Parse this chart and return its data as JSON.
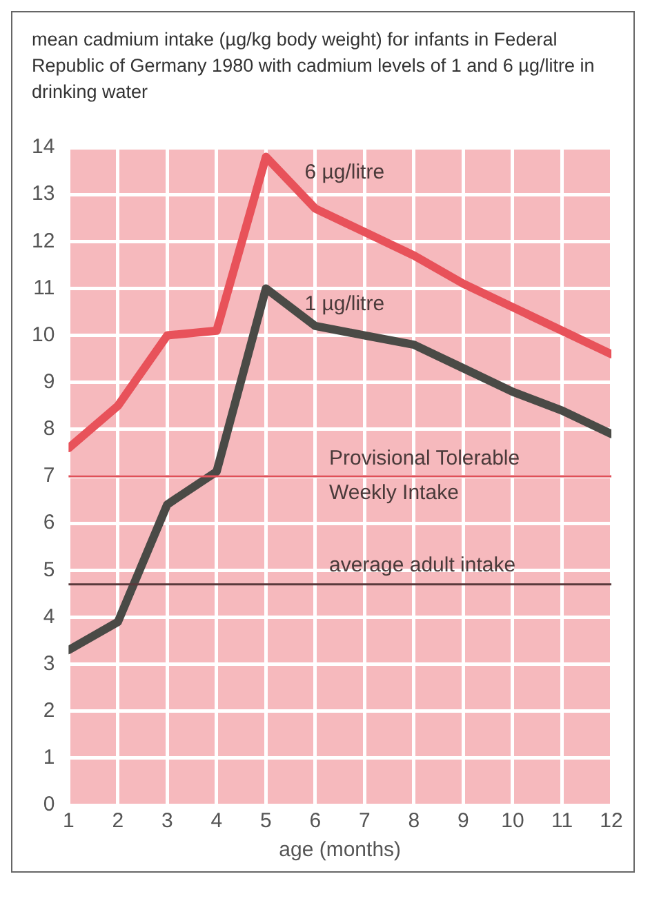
{
  "chart_data": {
    "type": "line",
    "title": "mean cadmium intake (µg/kg body weight) for infants in Federal Republic of Germany 1980 with cadmium levels of 1 and 6 µg/litre in drinking water",
    "xlabel": "age (months)",
    "x": [
      1,
      2,
      3,
      4,
      5,
      6,
      7,
      8,
      9,
      10,
      11,
      12
    ],
    "series": [
      {
        "name": "6 µg/litre",
        "color": "#e8525a",
        "values": [
          7.6,
          8.5,
          10.0,
          10.1,
          13.8,
          12.7,
          12.2,
          11.7,
          11.1,
          10.6,
          10.1,
          9.6
        ]
      },
      {
        "name": "1 µg/litre",
        "color": "#4a4a46",
        "values": [
          3.3,
          3.9,
          6.4,
          7.1,
          11.0,
          10.2,
          10.0,
          9.8,
          9.3,
          8.8,
          8.4,
          7.9
        ]
      }
    ],
    "ref_lines": [
      {
        "axis": "y",
        "value": 7,
        "label": "Provisional Tolerable Weekly Intake",
        "color": "#e05058"
      },
      {
        "axis": "y",
        "value": 4.7,
        "label": "average adult intake",
        "color": "#5a3a3c"
      }
    ],
    "xlim": [
      1,
      12
    ],
    "xticks": [
      1,
      2,
      3,
      4,
      5,
      6,
      7,
      8,
      9,
      10,
      11,
      12
    ],
    "ylim": [
      0,
      14
    ],
    "yticks": [
      0,
      1,
      2,
      3,
      4,
      5,
      6,
      7,
      8,
      9,
      10,
      11,
      12,
      13,
      14
    ],
    "grid": true,
    "legend": false,
    "marker": "none",
    "line_style": "solid"
  }
}
